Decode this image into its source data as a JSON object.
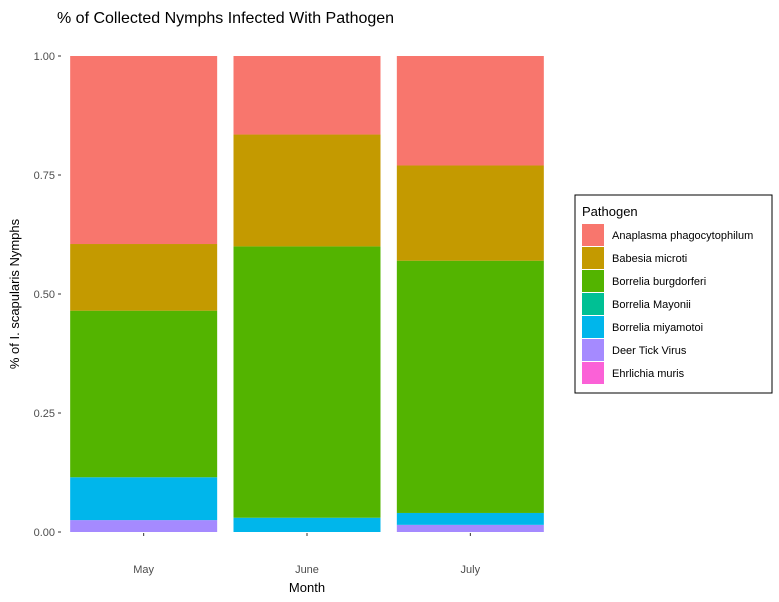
{
  "chart_data": {
    "type": "bar",
    "stacked": true,
    "title": "% of Collected Nymphs Infected With Pathogen",
    "xlabel": "Month",
    "ylabel": "% of I. scapularis Nymphs",
    "ylim": [
      0,
      1
    ],
    "yticks": [
      "0.00",
      "0.25",
      "0.50",
      "0.75",
      "1.00"
    ],
    "categories": [
      "May",
      "June",
      "July"
    ],
    "grid": false,
    "legend": {
      "title": "Pathogen",
      "placement": "right"
    },
    "series": [
      {
        "name": "Anaplasma phagocytophilum",
        "color": "#F8766D",
        "values": [
          0.395,
          0.165,
          0.23
        ]
      },
      {
        "name": "Babesia microti",
        "color": "#C49A00",
        "values": [
          0.14,
          0.235,
          0.2
        ]
      },
      {
        "name": "Borrelia burgdorferi",
        "color": "#53B400",
        "values": [
          0.35,
          0.57,
          0.53
        ]
      },
      {
        "name": "Borrelia Mayonii",
        "color": "#00C094",
        "values": [
          0,
          0,
          0
        ]
      },
      {
        "name": "Borrelia miyamotoi",
        "color": "#00B6EB",
        "values": [
          0.09,
          0.03,
          0.025
        ]
      },
      {
        "name": "Deer Tick Virus",
        "color": "#A58AFF",
        "values": [
          0.025,
          0,
          0.015
        ]
      },
      {
        "name": "Ehrlichia muris",
        "color": "#FB61D7",
        "values": [
          0,
          0,
          0
        ]
      }
    ]
  }
}
